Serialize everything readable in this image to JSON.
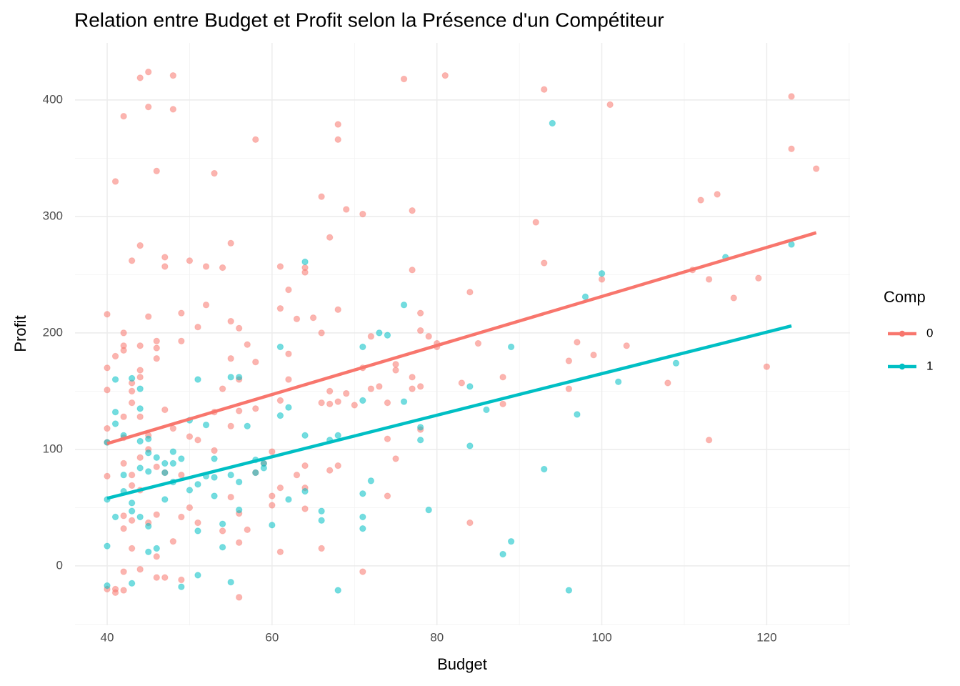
{
  "chart_data": {
    "type": "scatter",
    "title": "Relation entre Budget et Profit selon la Présence d'un Compétiteur",
    "x_label": "Budget",
    "y_label": "Profit",
    "legend_title": "Comp",
    "legend": "right",
    "grid": true,
    "xlim": [
      36.1,
      130.1
    ],
    "ylim": [
      -51,
      449
    ],
    "xticks": [
      40,
      60,
      80,
      100,
      120
    ],
    "yticks": [
      0,
      100,
      200,
      300,
      400
    ],
    "series": [
      {
        "name": "0",
        "color": "#F8766D",
        "fit_x": [
          40,
          126
        ],
        "fit_y": [
          105,
          286
        ],
        "x": [
          40,
          40,
          40,
          40,
          40,
          40,
          40,
          41,
          41,
          41,
          41,
          42,
          42,
          42,
          42,
          42,
          42,
          42,
          42,
          42,
          42,
          42,
          43,
          43,
          43,
          43,
          43,
          43,
          43,
          43,
          44,
          44,
          44,
          44,
          44,
          44,
          44,
          44,
          44,
          45,
          45,
          45,
          45,
          45,
          45,
          46,
          46,
          46,
          46,
          46,
          46,
          46,
          46,
          47,
          47,
          47,
          47,
          47,
          48,
          48,
          48,
          48,
          49,
          49,
          49,
          49,
          49,
          50,
          50,
          50,
          51,
          51,
          51,
          52,
          52,
          53,
          53,
          53,
          54,
          54,
          54,
          55,
          55,
          55,
          55,
          55,
          56,
          56,
          56,
          56,
          56,
          56,
          57,
          57,
          58,
          58,
          58,
          58,
          59,
          60,
          60,
          60,
          61,
          61,
          61,
          61,
          61,
          62,
          62,
          62,
          63,
          63,
          64,
          64,
          64,
          64,
          64,
          65,
          66,
          66,
          66,
          66,
          67,
          67,
          67,
          67,
          68,
          68,
          68,
          68,
          68,
          69,
          69,
          70,
          71,
          71,
          71,
          72,
          72,
          73,
          74,
          74,
          74,
          75,
          75,
          75,
          76,
          77,
          77,
          77,
          77,
          78,
          78,
          78,
          78,
          79,
          80,
          80,
          81,
          83,
          84,
          84,
          85,
          88,
          88,
          92,
          93,
          93,
          96,
          96,
          97,
          99,
          100,
          101,
          103,
          108,
          111,
          112,
          113,
          113,
          114,
          116,
          119,
          120,
          123,
          123,
          126
        ],
        "y": [
          216,
          170,
          151,
          118,
          106,
          77,
          -20,
          180,
          330,
          -20,
          -23,
          386,
          200,
          189,
          185,
          128,
          110,
          88,
          43,
          32,
          -5,
          -21,
          262,
          157,
          150,
          140,
          78,
          69,
          39,
          15,
          419,
          275,
          189,
          168,
          162,
          128,
          93,
          65,
          -3,
          424,
          394,
          214,
          112,
          100,
          37,
          193,
          187,
          178,
          85,
          44,
          8,
          -10,
          339,
          265,
          257,
          134,
          80,
          -10,
          421,
          392,
          118,
          21,
          217,
          193,
          78,
          42,
          -12,
          262,
          111,
          50,
          205,
          108,
          37,
          257,
          224,
          337,
          132,
          99,
          256,
          152,
          30,
          277,
          210,
          178,
          120,
          59,
          204,
          160,
          133,
          45,
          20,
          -27,
          190,
          31,
          366,
          175,
          135,
          80,
          88,
          98,
          60,
          52,
          257,
          221,
          142,
          67,
          12,
          237,
          182,
          160,
          212,
          78,
          256,
          252,
          86,
          67,
          49,
          213,
          317,
          200,
          140,
          15,
          282,
          150,
          139,
          82,
          379,
          366,
          220,
          141,
          86,
          306,
          148,
          138,
          302,
          170,
          -5,
          197,
          152,
          154,
          140,
          109,
          60,
          173,
          168,
          92,
          418,
          305,
          254,
          162,
          152,
          217,
          202,
          154,
          117,
          197,
          191,
          188,
          421,
          157,
          235,
          37,
          191,
          162,
          139,
          295,
          409,
          260,
          176,
          152,
          192,
          181,
          246,
          396,
          189,
          157,
          254,
          314,
          246,
          108,
          319,
          230,
          247,
          171,
          403,
          358,
          341
        ]
      },
      {
        "name": "1",
        "color": "#00BFC4",
        "fit_x": [
          40,
          123
        ],
        "fit_y": [
          58,
          206
        ],
        "x": [
          40,
          40,
          40,
          40,
          41,
          41,
          41,
          41,
          42,
          42,
          42,
          43,
          43,
          43,
          43,
          44,
          44,
          44,
          44,
          44,
          45,
          45,
          45,
          45,
          45,
          46,
          46,
          47,
          47,
          47,
          48,
          48,
          48,
          49,
          49,
          50,
          50,
          51,
          51,
          51,
          51,
          52,
          52,
          53,
          53,
          53,
          54,
          54,
          55,
          55,
          55,
          56,
          56,
          56,
          57,
          58,
          58,
          59,
          59,
          60,
          61,
          61,
          62,
          62,
          64,
          64,
          64,
          66,
          66,
          67,
          68,
          68,
          71,
          71,
          71,
          71,
          71,
          72,
          73,
          74,
          76,
          76,
          78,
          78,
          79,
          84,
          84,
          86,
          88,
          89,
          89,
          93,
          94,
          96,
          97,
          98,
          100,
          102,
          109,
          115,
          123
        ],
        "y": [
          106,
          57,
          17,
          -17,
          160,
          132,
          122,
          42,
          112,
          78,
          64,
          161,
          54,
          47,
          -15,
          152,
          135,
          107,
          84,
          42,
          109,
          97,
          81,
          34,
          12,
          93,
          15,
          88,
          80,
          57,
          98,
          88,
          72,
          92,
          -18,
          125,
          65,
          160,
          70,
          30,
          -8,
          121,
          77,
          92,
          76,
          60,
          36,
          16,
          162,
          78,
          -14,
          162,
          72,
          48,
          120,
          91,
          80,
          84,
          88,
          35,
          188,
          129,
          136,
          57,
          261,
          112,
          64,
          47,
          39,
          108,
          112,
          -21,
          188,
          142,
          62,
          42,
          32,
          73,
          200,
          198,
          224,
          141,
          119,
          108,
          48,
          154,
          103,
          134,
          10,
          188,
          21,
          83,
          380,
          -21,
          130,
          231,
          251,
          158,
          174,
          265,
          276
        ]
      }
    ]
  }
}
